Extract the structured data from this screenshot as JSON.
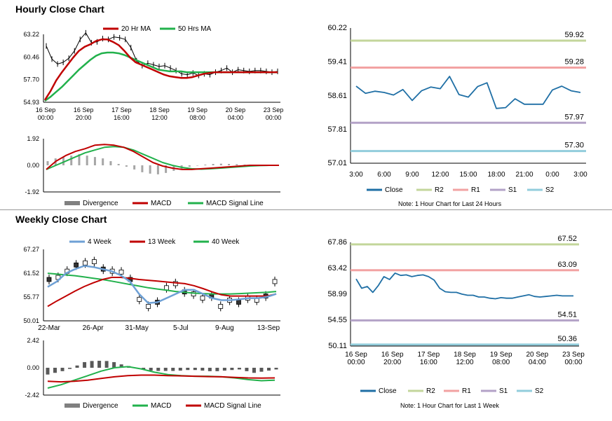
{
  "colors": {
    "dark_blue": "#1f6fa5",
    "green": "#22b14c",
    "red": "#c00000",
    "light_blue": "#6ea0d5",
    "grey": "#808080",
    "r2": "#c3d69b",
    "r1": "#f2a2a2",
    "s1": "#b3a2c7",
    "s2": "#92cddc"
  },
  "titles": {
    "hourly": "Hourly Close Chart",
    "weekly": "Weekly Close Chart"
  },
  "chart_data": [
    {
      "id": "hourly_ma",
      "type": "line",
      "ylim": [
        54.93,
        63.22
      ],
      "yticks": [
        "63.22",
        "60.46",
        "57.70",
        "54.93"
      ],
      "xticks": [
        [
          "16 Sep",
          "00:00"
        ],
        [
          "16 Sep",
          "20:00"
        ],
        [
          "17 Sep",
          "16:00"
        ],
        [
          "18 Sep",
          "12:00"
        ],
        [
          "19 Sep",
          "08:00"
        ],
        [
          "20 Sep",
          "04:00"
        ],
        [
          "23 Sep",
          "00:00"
        ]
      ],
      "legend": [
        "20 Hr MA",
        "50 Hrs MA"
      ],
      "series": [
        {
          "name": "Price",
          "values": [
            61.8,
            60.2,
            59.6,
            59.8,
            60.3,
            61.2,
            62.6,
            63.4,
            62.2,
            62.3,
            62.7,
            62.6,
            62.9,
            62.8,
            62.6,
            61.6,
            60.0,
            59.4,
            59.7,
            59.5,
            59.3,
            59.4,
            59.1,
            58.8,
            58.4,
            58.3,
            58.5,
            58.2,
            58.4,
            58.3,
            58.6,
            58.8,
            59.1,
            58.6,
            58.9,
            58.8,
            58.7,
            58.8,
            58.8,
            58.7,
            58.6,
            58.7
          ]
        },
        {
          "name": "20 Hr MA",
          "values": [
            55.2,
            56.3,
            57.6,
            58.6,
            59.5,
            60.4,
            61.2,
            61.7,
            62.0,
            62.4,
            62.6,
            62.6,
            62.3,
            61.9,
            61.2,
            60.4,
            59.8,
            59.5,
            59.2,
            58.9,
            58.6,
            58.3,
            58.1,
            58.0,
            57.9,
            57.9,
            58.0,
            58.2,
            58.4,
            58.5,
            58.6,
            58.6,
            58.6,
            58.6,
            58.6,
            58.6,
            58.6,
            58.6,
            58.6,
            58.6,
            58.6,
            58.6
          ]
        },
        {
          "name": "50 Hrs MA",
          "values": [
            55.1,
            55.6,
            56.2,
            56.8,
            57.5,
            58.2,
            58.9,
            59.5,
            60.1,
            60.6,
            60.9,
            61.0,
            61.0,
            60.9,
            60.7,
            60.4,
            60.1,
            59.8,
            59.5,
            59.2,
            58.9,
            58.8,
            58.7,
            58.7,
            58.7,
            58.6,
            58.6,
            58.6,
            58.6,
            58.6,
            58.6,
            58.6,
            58.6,
            58.6,
            58.6,
            58.6,
            58.6,
            58.6,
            58.6,
            58.6,
            58.6,
            58.6
          ]
        }
      ]
    },
    {
      "id": "hourly_macd",
      "type": "bar",
      "ylim": [
        -1.92,
        1.92
      ],
      "yticks": [
        "1.92",
        "0.00",
        "-1.92"
      ],
      "legend": [
        "Divergence",
        "MACD",
        "MACD Signal Line"
      ],
      "divergence": [
        0.3,
        0.5,
        0.6,
        0.7,
        0.8,
        0.7,
        0.6,
        0.5,
        0.3,
        0.1,
        -0.1,
        -0.3,
        -0.5,
        -0.6,
        -0.65,
        -0.55,
        -0.4,
        -0.25,
        -0.1,
        0.0,
        0.05,
        0.1,
        0.12,
        0.1,
        0.08,
        0.05,
        0.03,
        0.02,
        0.0,
        -0.02
      ],
      "macd": [
        -0.3,
        0.3,
        0.7,
        1.0,
        1.2,
        1.45,
        1.5,
        1.45,
        1.3,
        1.0,
        0.6,
        0.2,
        -0.05,
        -0.2,
        -0.3,
        -0.3,
        -0.25,
        -0.2,
        -0.15,
        -0.1,
        -0.05,
        0.0,
        0.0,
        0.0,
        0.0
      ],
      "signal": [
        -0.3,
        0.0,
        0.3,
        0.6,
        0.9,
        1.1,
        1.3,
        1.35,
        1.3,
        1.1,
        0.8,
        0.5,
        0.2,
        0.0,
        -0.15,
        -0.25,
        -0.28,
        -0.25,
        -0.2,
        -0.15,
        -0.1,
        -0.05,
        -0.02,
        0.0,
        0.0
      ]
    },
    {
      "id": "hourly_pivot",
      "type": "line",
      "ylim": [
        57.01,
        60.22
      ],
      "yticks": [
        "60.22",
        "59.41",
        "58.61",
        "57.81",
        "57.01"
      ],
      "xticks": [
        "3:00",
        "6:00",
        "9:00",
        "12:00",
        "15:00",
        "18:00",
        "21:00",
        "0:00",
        "3:00"
      ],
      "legend": [
        "Close",
        "R2",
        "R1",
        "S1",
        "S2"
      ],
      "levels": [
        {
          "name": "R2",
          "label": "59.92",
          "value": 59.92
        },
        {
          "name": "R1",
          "label": "59.28",
          "value": 59.28
        },
        {
          "name": "S1",
          "label": "57.97",
          "value": 57.97
        },
        {
          "name": "S2",
          "label": "57.30",
          "value": 57.3
        }
      ],
      "close": [
        58.84,
        58.67,
        58.72,
        58.69,
        58.63,
        58.76,
        58.5,
        58.73,
        58.82,
        58.78,
        59.07,
        58.64,
        58.58,
        58.83,
        58.92,
        58.31,
        58.33,
        58.54,
        58.41,
        58.41,
        58.41,
        58.75,
        58.84,
        58.73,
        58.69
      ],
      "note": "Note: 1 Hour Chart for Last 24 Hours"
    },
    {
      "id": "weekly_ma",
      "type": "line",
      "ylim": [
        50.01,
        67.27
      ],
      "yticks": [
        "67.27",
        "61.52",
        "55.77",
        "50.01"
      ],
      "xticks": [
        "22-Mar",
        "26-Apr",
        "31-May",
        "5-Jul",
        "9-Aug",
        "13-Sep"
      ],
      "legend": [
        "4 Week",
        "13 Week",
        "40 Week"
      ],
      "series": [
        {
          "name": "Price",
          "values": [
            60.0,
            60.5,
            62.0,
            63.5,
            64.0,
            64.3,
            62.5,
            62.0,
            61.8,
            60.0,
            55.2,
            53.5,
            54.5,
            58.0,
            59.0,
            57.0,
            56.5,
            55.5,
            56.0,
            53.5,
            55.0,
            54.5,
            55.5,
            55.0,
            56.0,
            59.5
          ]
        },
        {
          "name": "4 Week",
          "values": [
            58.2,
            59.5,
            61.5,
            62.5,
            63.3,
            63.0,
            62.5,
            62.0,
            61.0,
            59.5,
            56.5,
            54.3,
            54.5,
            55.5,
            56.5,
            57.5,
            57.5,
            56.5,
            55.5,
            55.0,
            55.0,
            55.2,
            55.5,
            55.5,
            55.8,
            56.5
          ]
        },
        {
          "name": "13 Week",
          "values": [
            53.5,
            54.8,
            56.0,
            57.2,
            58.3,
            59.2,
            60.0,
            60.5,
            60.5,
            60.3,
            60.0,
            59.8,
            59.6,
            59.4,
            59.2,
            59.0,
            58.5,
            57.8,
            57.0,
            56.3,
            56.0,
            56.0,
            56.0,
            56.0,
            56.0,
            56.5
          ]
        },
        {
          "name": "40 Week",
          "values": [
            61.5,
            61.3,
            61.1,
            60.9,
            60.6,
            60.3,
            60.0,
            59.6,
            59.2,
            58.8,
            58.4,
            58.0,
            57.7,
            57.4,
            57.1,
            56.9,
            56.7,
            56.6,
            56.5,
            56.5,
            56.5,
            56.6,
            56.7,
            56.8,
            56.9,
            57.1
          ]
        }
      ]
    },
    {
      "id": "weekly_macd",
      "type": "bar",
      "ylim": [
        -2.42,
        2.42
      ],
      "yticks": [
        "2.42",
        "0.00",
        "-2.42"
      ],
      "legend": [
        "Divergence",
        "MACD",
        "MACD Signal Line"
      ],
      "divergence": [
        -0.6,
        -0.45,
        -0.3,
        -0.1,
        0.2,
        0.5,
        0.6,
        0.62,
        0.6,
        0.5,
        0.3,
        0.15,
        0.0,
        -0.15,
        -0.25,
        -0.28,
        -0.28,
        -0.28,
        -0.25,
        -0.2,
        -0.2,
        -0.25,
        -0.3,
        -0.3,
        -0.25,
        -0.2,
        -0.15,
        -0.3,
        -0.45,
        -0.35,
        -0.25,
        -0.15
      ],
      "macd": [
        -1.8,
        -1.5,
        -1.1,
        -0.7,
        -0.3,
        0.0,
        0.1,
        -0.1,
        -0.4,
        -0.6,
        -0.7,
        -0.75,
        -0.75,
        -0.8,
        -0.9,
        -1.05,
        -1.15,
        -1.1
      ],
      "signal": [
        -1.2,
        -1.25,
        -1.2,
        -1.1,
        -0.95,
        -0.8,
        -0.7,
        -0.65,
        -0.65,
        -0.7,
        -0.72,
        -0.75,
        -0.78,
        -0.8,
        -0.85,
        -0.9,
        -0.92,
        -0.9
      ]
    },
    {
      "id": "weekly_pivot",
      "type": "line",
      "ylim": [
        50.11,
        67.86
      ],
      "yticks": [
        "67.86",
        "63.42",
        "58.99",
        "54.55",
        "50.11"
      ],
      "xticks": [
        [
          "16 Sep",
          "00:00"
        ],
        [
          "16 Sep",
          "20:00"
        ],
        [
          "17 Sep",
          "16:00"
        ],
        [
          "18 Sep",
          "12:00"
        ],
        [
          "19 Sep",
          "08:00"
        ],
        [
          "20 Sep",
          "04:00"
        ],
        [
          "23 Sep",
          "00:00"
        ]
      ],
      "legend": [
        "Close",
        "R2",
        "R1",
        "S1",
        "S2"
      ],
      "levels": [
        {
          "name": "R2",
          "label": "67.52",
          "value": 67.52
        },
        {
          "name": "R1",
          "label": "63.09",
          "value": 63.09
        },
        {
          "name": "S1",
          "label": "54.51",
          "value": 54.51
        },
        {
          "name": "S2",
          "label": "50.36",
          "value": 50.36
        }
      ],
      "close": [
        61.6,
        60.0,
        60.3,
        59.3,
        60.5,
        62.0,
        61.5,
        62.6,
        62.2,
        62.3,
        62.0,
        62.2,
        62.3,
        62.0,
        61.4,
        60.0,
        59.4,
        59.3,
        59.3,
        59.0,
        58.8,
        58.8,
        58.5,
        58.5,
        58.3,
        58.2,
        58.4,
        58.3,
        58.3,
        58.5,
        58.7,
        58.9,
        58.6,
        58.5,
        58.6,
        58.7,
        58.8,
        58.7,
        58.7,
        58.7
      ],
      "note": "Note: 1 Hour Chart for Last 1 Week"
    }
  ]
}
